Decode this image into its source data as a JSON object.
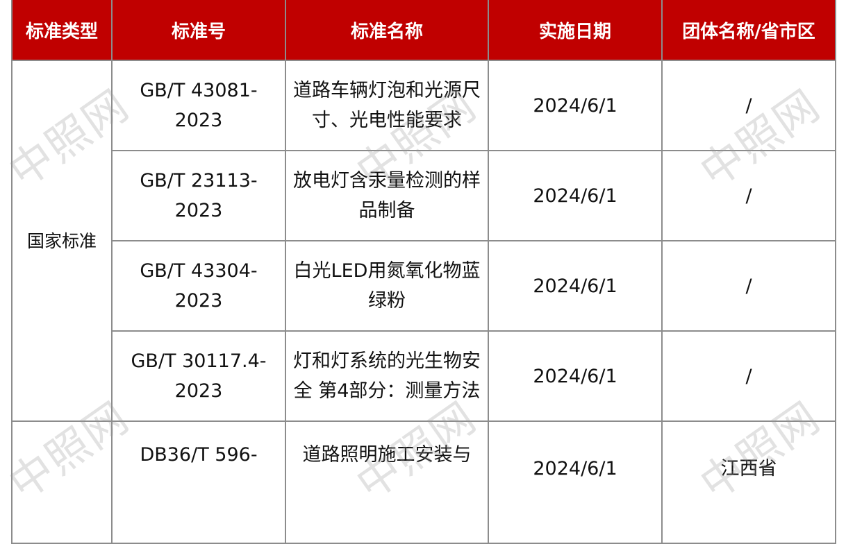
{
  "header": [
    "标准类型",
    "标准号",
    "标准名称",
    "实施日期",
    "团体名称/省市区"
  ],
  "category": "国家标准",
  "rows": [
    {
      "number": "GB/T 43081-2023",
      "name": "道路车辆灯泡和光源尺寸、光电性能要求",
      "date": "2024/6/1",
      "org": "/"
    },
    {
      "number": "GB/T 23113-2023",
      "name": "放电灯含汞量检测的样品制备",
      "date": "2024/6/1",
      "org": "/"
    },
    {
      "number": "GB/T 43304-2023",
      "name": "白光LED用氮氧化物蓝绿粉",
      "date": "2024/6/1",
      "org": "/"
    },
    {
      "number": "GB/T 30117.4-2023",
      "name": "灯和灯系统的光生物安全 第4部分：测量方法",
      "date": "2024/6/1",
      "org": "/"
    },
    {
      "number": "DB36/T 596-",
      "name": "道路照明施工安装与",
      "date": "2024/6/1",
      "org": "江西省"
    }
  ],
  "watermark": "中照网",
  "colors": {
    "header_bg": "#c00000",
    "border": "#8c8c8c"
  }
}
